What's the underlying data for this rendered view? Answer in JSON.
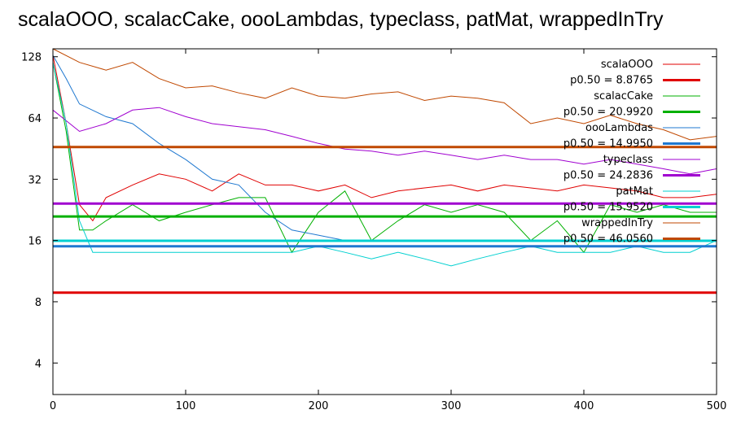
{
  "chart_data": {
    "type": "line",
    "title": "scalaOOO, scalacCake, oooLambdas, typeclass, patMat, wrappedInTry",
    "xlabel": "",
    "ylabel": "",
    "xlim": [
      0,
      500
    ],
    "ylim": [
      2.8,
      140
    ],
    "yscale": "log2",
    "xticks": [
      0,
      100,
      200,
      300,
      400,
      500
    ],
    "yticks": [
      4,
      8,
      16,
      32,
      64,
      128
    ],
    "grid": false,
    "legend_position": "top-right",
    "series": [
      {
        "name": "scalaOOO",
        "color": "#e00000",
        "values": [
          [
            0,
            130
          ],
          [
            10,
            60
          ],
          [
            20,
            24
          ],
          [
            30,
            20
          ],
          [
            40,
            26
          ],
          [
            60,
            30
          ],
          [
            80,
            34
          ],
          [
            100,
            32
          ],
          [
            120,
            28
          ],
          [
            140,
            34
          ],
          [
            160,
            30
          ],
          [
            180,
            30
          ],
          [
            200,
            28
          ],
          [
            220,
            30
          ],
          [
            240,
            26
          ],
          [
            260,
            28
          ],
          [
            280,
            29
          ],
          [
            300,
            30
          ],
          [
            320,
            28
          ],
          [
            340,
            30
          ],
          [
            360,
            29
          ],
          [
            380,
            28
          ],
          [
            400,
            30
          ],
          [
            420,
            29
          ],
          [
            440,
            28
          ],
          [
            460,
            26
          ],
          [
            480,
            26
          ],
          [
            500,
            27
          ]
        ]
      },
      {
        "name": "scalacCake",
        "color": "#00b000",
        "values": [
          [
            0,
            120
          ],
          [
            10,
            55
          ],
          [
            20,
            18
          ],
          [
            30,
            18
          ],
          [
            40,
            20
          ],
          [
            60,
            24
          ],
          [
            80,
            20
          ],
          [
            100,
            22
          ],
          [
            120,
            24
          ],
          [
            140,
            26
          ],
          [
            160,
            26
          ],
          [
            180,
            14
          ],
          [
            200,
            22
          ],
          [
            220,
            28
          ],
          [
            240,
            16
          ],
          [
            260,
            20
          ],
          [
            280,
            24
          ],
          [
            300,
            22
          ],
          [
            320,
            24
          ],
          [
            340,
            22
          ],
          [
            360,
            16
          ],
          [
            380,
            20
          ],
          [
            400,
            14
          ],
          [
            420,
            24
          ],
          [
            440,
            22
          ],
          [
            460,
            24
          ],
          [
            480,
            22
          ],
          [
            500,
            22
          ]
        ]
      },
      {
        "name": "oooLambdas",
        "color": "#1f78d0",
        "values": [
          [
            0,
            130
          ],
          [
            10,
            100
          ],
          [
            20,
            75
          ],
          [
            40,
            65
          ],
          [
            60,
            60
          ],
          [
            80,
            48
          ],
          [
            100,
            40
          ],
          [
            120,
            32
          ],
          [
            140,
            30
          ],
          [
            160,
            22
          ],
          [
            180,
            18
          ],
          [
            200,
            17
          ],
          [
            220,
            16
          ],
          [
            240,
            16
          ],
          [
            260,
            16
          ],
          [
            280,
            16
          ],
          [
            300,
            16
          ],
          [
            320,
            16
          ],
          [
            340,
            16
          ],
          [
            360,
            16
          ],
          [
            380,
            16
          ],
          [
            400,
            16
          ],
          [
            420,
            16
          ],
          [
            440,
            16
          ],
          [
            460,
            16
          ],
          [
            480,
            16
          ],
          [
            500,
            16
          ]
        ]
      },
      {
        "name": "typeclass",
        "color": "#a000d0",
        "values": [
          [
            0,
            70
          ],
          [
            20,
            55
          ],
          [
            40,
            60
          ],
          [
            60,
            70
          ],
          [
            80,
            72
          ],
          [
            100,
            65
          ],
          [
            120,
            60
          ],
          [
            140,
            58
          ],
          [
            160,
            56
          ],
          [
            180,
            52
          ],
          [
            200,
            48
          ],
          [
            220,
            45
          ],
          [
            240,
            44
          ],
          [
            260,
            42
          ],
          [
            280,
            44
          ],
          [
            300,
            42
          ],
          [
            320,
            40
          ],
          [
            340,
            42
          ],
          [
            360,
            40
          ],
          [
            380,
            40
          ],
          [
            400,
            38
          ],
          [
            420,
            40
          ],
          [
            440,
            38
          ],
          [
            460,
            36
          ],
          [
            480,
            34
          ],
          [
            500,
            36
          ]
        ]
      },
      {
        "name": "patMat",
        "color": "#00d0d0",
        "values": [
          [
            0,
            120
          ],
          [
            10,
            60
          ],
          [
            20,
            20
          ],
          [
            30,
            14
          ],
          [
            40,
            14
          ],
          [
            60,
            14
          ],
          [
            80,
            14
          ],
          [
            100,
            14
          ],
          [
            120,
            14
          ],
          [
            140,
            14
          ],
          [
            160,
            14
          ],
          [
            180,
            14
          ],
          [
            200,
            15
          ],
          [
            220,
            14
          ],
          [
            240,
            13
          ],
          [
            260,
            14
          ],
          [
            280,
            13
          ],
          [
            300,
            12
          ],
          [
            320,
            13
          ],
          [
            340,
            14
          ],
          [
            360,
            15
          ],
          [
            380,
            14
          ],
          [
            400,
            14
          ],
          [
            420,
            14
          ],
          [
            440,
            15
          ],
          [
            460,
            14
          ],
          [
            480,
            14
          ],
          [
            500,
            16
          ]
        ]
      },
      {
        "name": "wrappedInTry",
        "color": "#c04800",
        "values": [
          [
            0,
            140
          ],
          [
            20,
            120
          ],
          [
            40,
            110
          ],
          [
            60,
            120
          ],
          [
            80,
            100
          ],
          [
            100,
            90
          ],
          [
            120,
            92
          ],
          [
            140,
            85
          ],
          [
            160,
            80
          ],
          [
            180,
            90
          ],
          [
            200,
            82
          ],
          [
            220,
            80
          ],
          [
            240,
            84
          ],
          [
            260,
            86
          ],
          [
            280,
            78
          ],
          [
            300,
            82
          ],
          [
            320,
            80
          ],
          [
            340,
            76
          ],
          [
            360,
            60
          ],
          [
            380,
            64
          ],
          [
            400,
            60
          ],
          [
            420,
            66
          ],
          [
            440,
            60
          ],
          [
            460,
            56
          ],
          [
            480,
            50
          ],
          [
            500,
            52
          ]
        ]
      }
    ],
    "reference_lines": [
      {
        "label": "p0.50 = 8.8765",
        "value": 8.8765,
        "color": "#e00000"
      },
      {
        "label": "p0.50 = 20.9920",
        "value": 20.992,
        "color": "#00b000"
      },
      {
        "label": "p0.50 = 14.9950",
        "value": 14.995,
        "color": "#1f78d0"
      },
      {
        "label": "p0.50 = 24.2836",
        "value": 24.2836,
        "color": "#a000d0"
      },
      {
        "label": "p0.50 = 15.9520",
        "value": 15.952,
        "color": "#00d0d0"
      },
      {
        "label": "p0.50 = 46.0560",
        "value": 46.056,
        "color": "#c04800"
      }
    ]
  }
}
